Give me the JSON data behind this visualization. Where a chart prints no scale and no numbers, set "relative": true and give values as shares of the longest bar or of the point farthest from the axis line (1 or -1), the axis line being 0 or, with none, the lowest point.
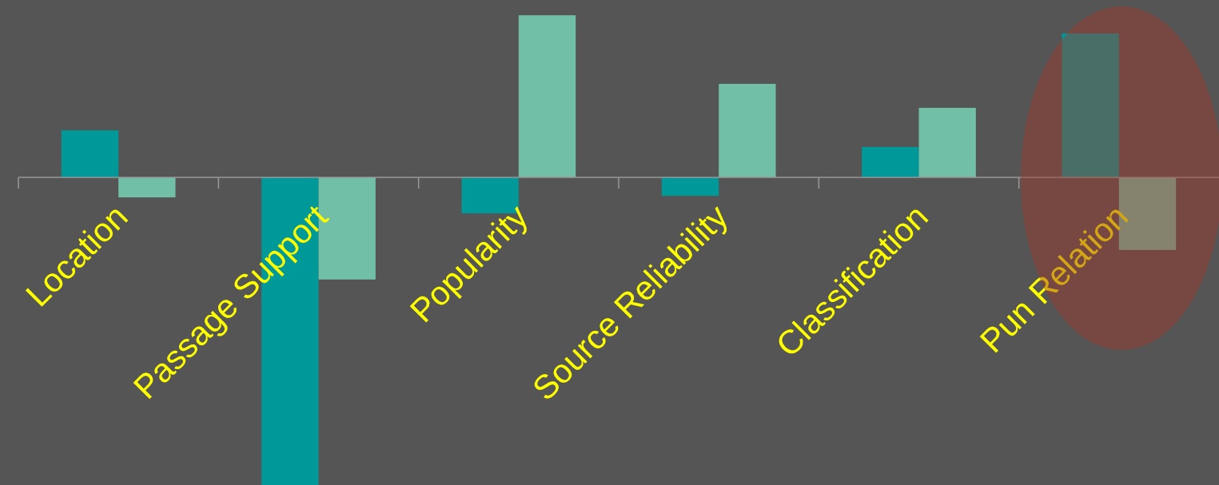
{
  "chart_data": {
    "type": "bar",
    "relative": true,
    "categories": [
      "Location",
      "Passage Support",
      "Popularity",
      "Source Reliability",
      "Classification",
      "Pun Relation"
    ],
    "series": [
      {
        "color": "#009999",
        "values": [
          0.153,
          -1,
          -0.117,
          -0.06,
          0.099,
          0.468
        ]
      },
      {
        "color": "#70bfa6",
        "values": [
          -0.065,
          -0.332,
          0.527,
          0.304,
          0.226,
          -0.236
        ]
      }
    ]
  }
}
